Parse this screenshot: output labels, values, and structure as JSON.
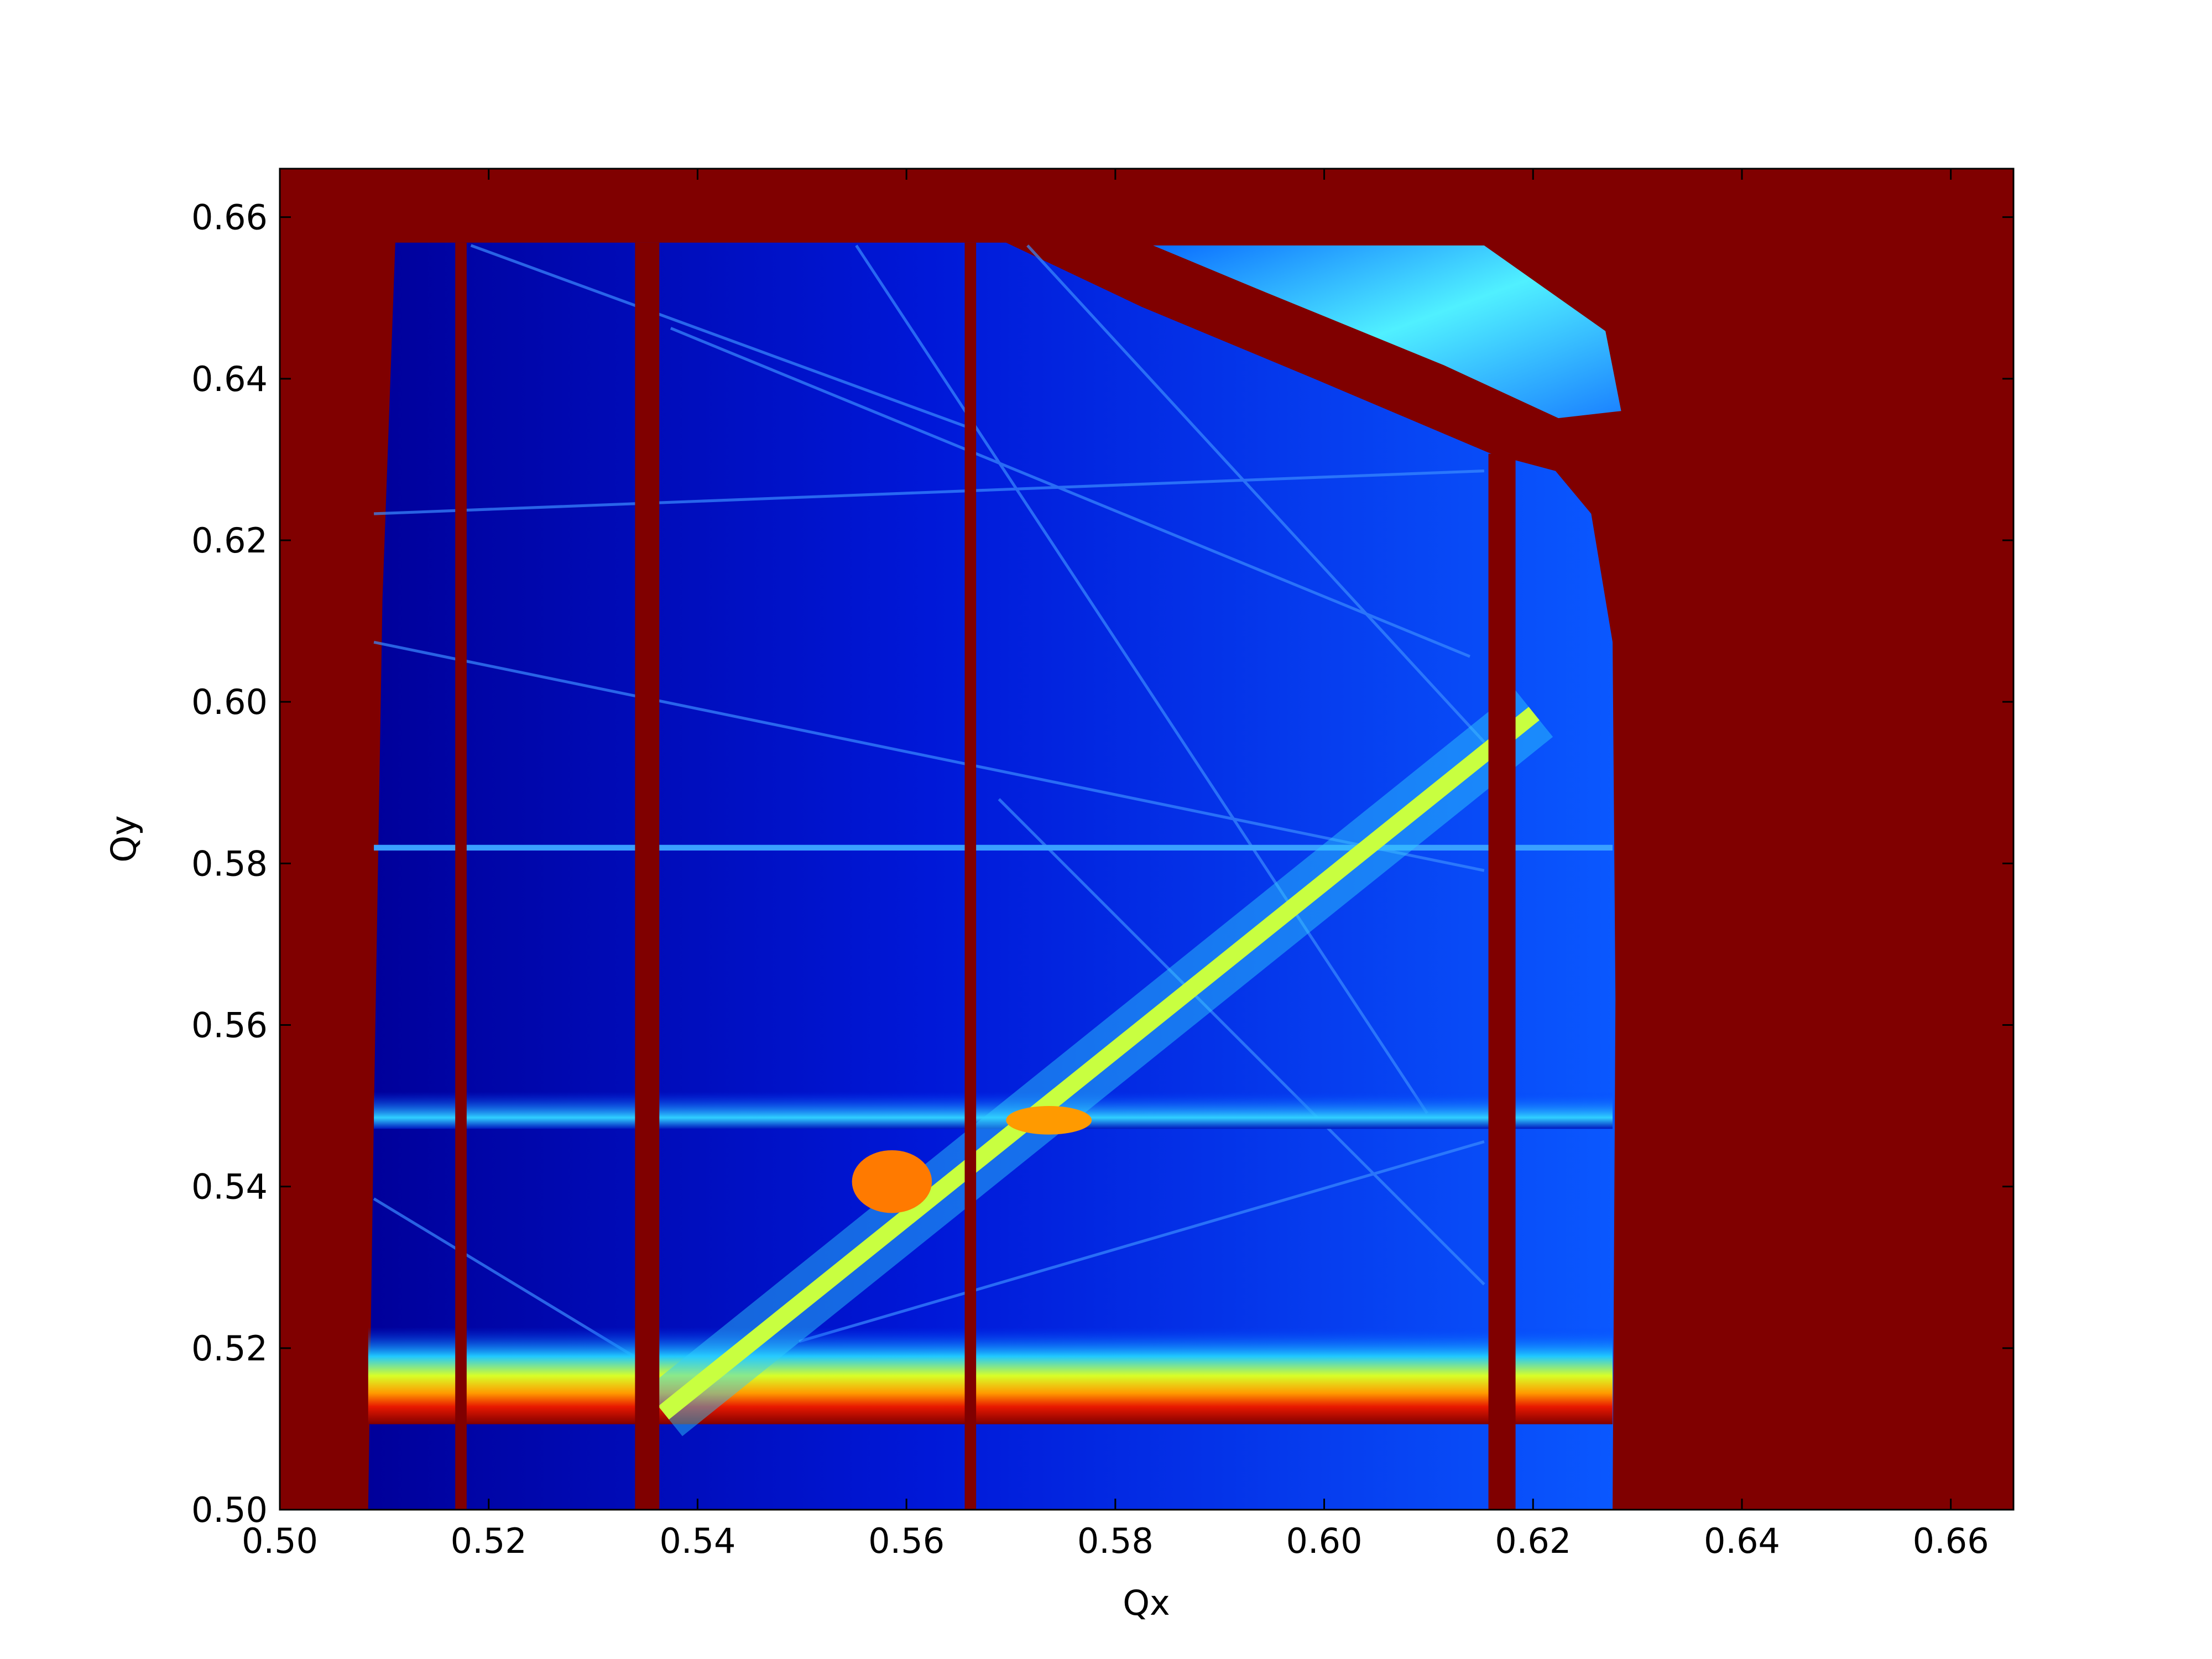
{
  "chart_data": {
    "type": "heatmap",
    "colormap": "jet",
    "xlabel": "Qx",
    "ylabel": "Qy",
    "xlim": [
      0.5,
      0.666
    ],
    "ylim": [
      0.5,
      0.666
    ],
    "xticks": [
      {
        "value": 0.5,
        "label": "0.50"
      },
      {
        "value": 0.52,
        "label": "0.52"
      },
      {
        "value": 0.54,
        "label": "0.54"
      },
      {
        "value": 0.56,
        "label": "0.56"
      },
      {
        "value": 0.58,
        "label": "0.58"
      },
      {
        "value": 0.6,
        "label": "0.60"
      },
      {
        "value": 0.62,
        "label": "0.62"
      },
      {
        "value": 0.64,
        "label": "0.64"
      },
      {
        "value": 0.66,
        "label": "0.66"
      }
    ],
    "yticks": [
      {
        "value": 0.5,
        "label": "0.50"
      },
      {
        "value": 0.52,
        "label": "0.52"
      },
      {
        "value": 0.54,
        "label": "0.54"
      },
      {
        "value": 0.56,
        "label": "0.56"
      },
      {
        "value": 0.58,
        "label": "0.58"
      },
      {
        "value": 0.6,
        "label": "0.60"
      },
      {
        "value": 0.62,
        "label": "0.62"
      },
      {
        "value": 0.64,
        "label": "0.64"
      },
      {
        "value": 0.66,
        "label": "0.66"
      }
    ]
  }
}
